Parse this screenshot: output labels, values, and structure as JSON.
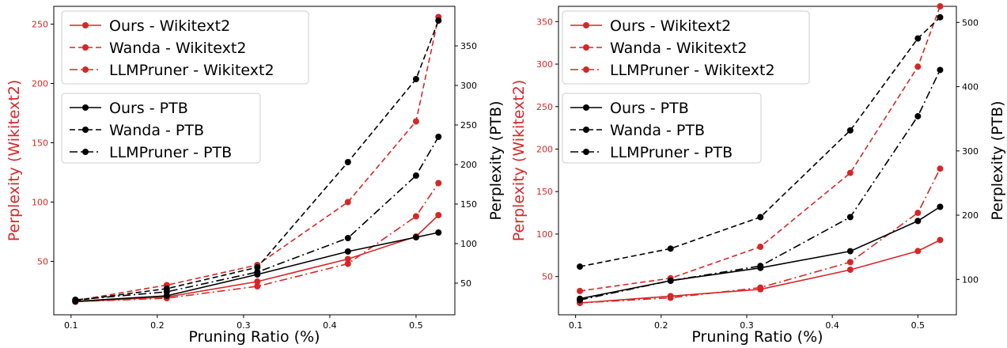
{
  "colors": {
    "left_axis": "#d62728",
    "right_axis": "#000000"
  },
  "chart_data": [
    {
      "type": "line",
      "title": "",
      "xlabel": "Pruning Ratio (%)",
      "ylabel": "Perplexity (Wikitext2)",
      "ylabel_right": "Perplexity (PTB)",
      "xlim": [
        0.08,
        0.545
      ],
      "ylim": [
        5,
        265
      ],
      "ylim_right": [
        10,
        400
      ],
      "x_ticks": [
        "0.1",
        "0.2",
        "0.3",
        "0.4",
        "0.5"
      ],
      "y_ticks": [
        "50",
        "100",
        "150",
        "200",
        "250"
      ],
      "y_ticks_right": [
        "50",
        "100",
        "150",
        "200",
        "250",
        "300",
        "350"
      ],
      "x": [
        0.105,
        0.211,
        0.316,
        0.421,
        0.5,
        0.526
      ],
      "legend_top": [
        "Ours - Wikitext2",
        "Wanda - Wikitext2",
        "LLMPruner - Wikitext2"
      ],
      "legend_bottom": [
        "Ours - PTB",
        "Wanda - PTB",
        "LLMPruner - PTB"
      ],
      "series": [
        {
          "name": "Ours - Wikitext2",
          "axis": "left",
          "color": "#d62728",
          "dash": "solid",
          "values": [
            16,
            20,
            33,
            52,
            71,
            89
          ]
        },
        {
          "name": "Wanda - Wikitext2",
          "axis": "left",
          "color": "#d62728",
          "dash": "dashed",
          "values": [
            17,
            30,
            47,
            100,
            168,
            256
          ]
        },
        {
          "name": "LLMPruner - Wikitext2",
          "axis": "left",
          "color": "#d62728",
          "dash": "dashdot",
          "values": [
            16,
            19,
            29,
            48,
            88,
            116
          ]
        },
        {
          "name": "Ours - PTB",
          "axis": "right",
          "color": "#000000",
          "dash": "solid",
          "values": [
            27,
            34,
            61,
            90,
            108,
            114
          ]
        },
        {
          "name": "Wanda - PTB",
          "axis": "right",
          "color": "#000000",
          "dash": "dashed",
          "values": [
            28,
            43,
            70,
            203,
            308,
            382
          ]
        },
        {
          "name": "LLMPruner - PTB",
          "axis": "right",
          "color": "#000000",
          "dash": "dashdot",
          "values": [
            29,
            39,
            64,
            107,
            186,
            235
          ]
        }
      ]
    },
    {
      "type": "line",
      "title": "",
      "xlabel": "Pruning Ratio (%)",
      "ylabel": "Perplexity (Wikitext2)",
      "ylabel_right": "Perplexity (PTB)",
      "xlim": [
        0.08,
        0.545
      ],
      "ylim": [
        5,
        368
      ],
      "ylim_right": [
        45,
        525
      ],
      "x_ticks": [
        "0.1",
        "0.2",
        "0.3",
        "0.4",
        "0.5"
      ],
      "y_ticks": [
        "50",
        "100",
        "150",
        "200",
        "250",
        "300",
        "350"
      ],
      "y_ticks_right": [
        "100",
        "200",
        "300",
        "400",
        "500"
      ],
      "x": [
        0.105,
        0.211,
        0.316,
        0.421,
        0.5,
        0.526
      ],
      "legend_top": [
        "Ours - Wikitext2",
        "Wanda - Wikitext2",
        "LLMPruner - Wikitext2"
      ],
      "legend_bottom": [
        "Ours - PTB",
        "Wanda - PTB",
        "LLMPruner - PTB"
      ],
      "series": [
        {
          "name": "Ours - Wikitext2",
          "axis": "left",
          "color": "#d62728",
          "dash": "solid",
          "values": [
            19,
            27,
            35,
            58,
            80,
            93
          ]
        },
        {
          "name": "Wanda - Wikitext2",
          "axis": "left",
          "color": "#d62728",
          "dash": "dashed",
          "values": [
            33,
            48,
            85,
            172,
            297,
            368
          ]
        },
        {
          "name": "LLMPruner - Wikitext2",
          "axis": "left",
          "color": "#d62728",
          "dash": "dashdot",
          "values": [
            19,
            25,
            37,
            67,
            125,
            177
          ]
        },
        {
          "name": "Ours - PTB",
          "axis": "right",
          "color": "#000000",
          "dash": "solid",
          "values": [
            70,
            98,
            118,
            144,
            191,
            213
          ]
        },
        {
          "name": "Wanda - PTB",
          "axis": "right",
          "color": "#000000",
          "dash": "dashed",
          "values": [
            120,
            148,
            197,
            332,
            475,
            508
          ]
        },
        {
          "name": "LLMPruner - PTB",
          "axis": "right",
          "color": "#000000",
          "dash": "dashdot",
          "values": [
            68,
            98,
            121,
            197,
            354,
            426
          ]
        }
      ]
    }
  ]
}
